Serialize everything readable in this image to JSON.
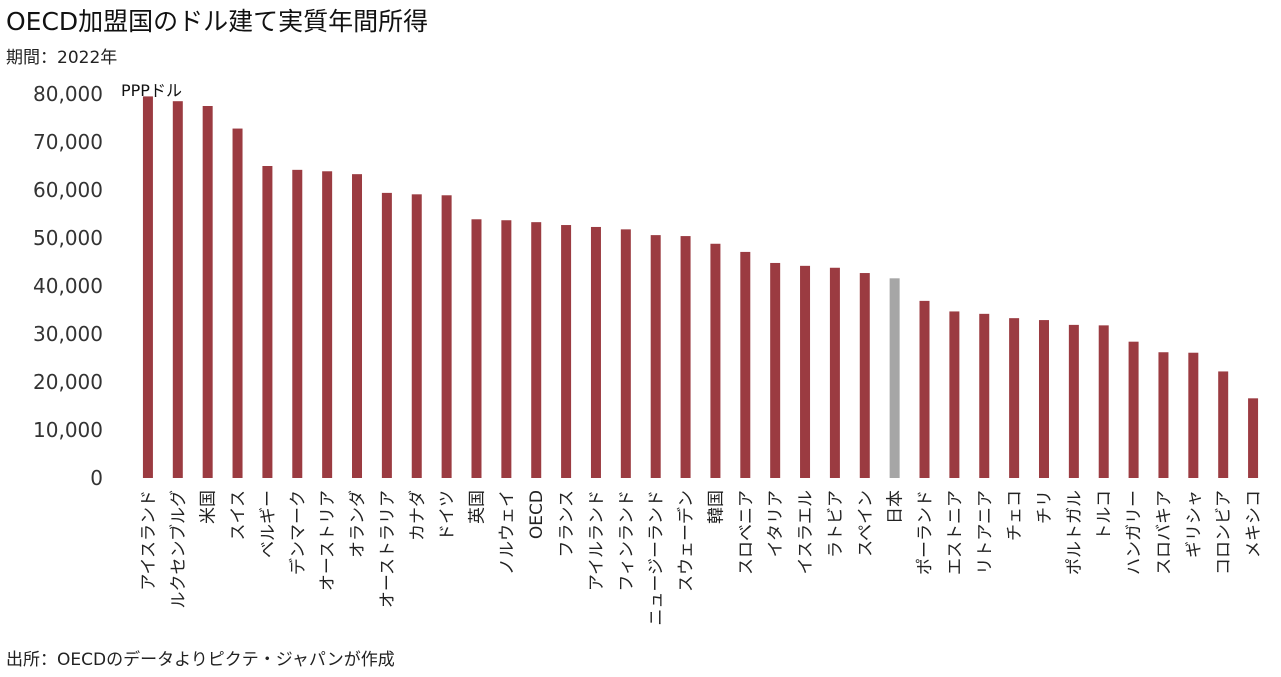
{
  "title": "OECD加盟国のドル建て実質年間所得",
  "subtitle": "期間：2022年",
  "source": "出所：OECDのデータよりピクテ・ジャパンが作成",
  "chart_data": {
    "type": "bar",
    "title": "OECD加盟国のドル建て実質年間所得",
    "subtitle": "期間：2022年",
    "unit_label": "PPPドル",
    "ylim": [
      0,
      80000
    ],
    "yticks": [
      0,
      10000,
      20000,
      30000,
      40000,
      50000,
      60000,
      70000,
      80000
    ],
    "ytick_labels": [
      "0",
      "10,000",
      "20,000",
      "30,000",
      "40,000",
      "50,000",
      "60,000",
      "70,000",
      "80,000"
    ],
    "grid": false,
    "legend": "none",
    "colors": {
      "default": "#9b3b41",
      "highlight": "#a6a6a6"
    },
    "highlight_category": "日本",
    "categories": [
      "アイスランド",
      "ルクセンブルグ",
      "米国",
      "スイス",
      "ベルギー",
      "デンマーク",
      "オーストリア",
      "オランダ",
      "オーストラリア",
      "カナダ",
      "ドイツ",
      "英国",
      "ノルウェイ",
      "OECD",
      "フランス",
      "アイルランド",
      "フィンランド",
      "ニュージーランド",
      "スウェーデン",
      "韓国",
      "スロベニア",
      "イタリア",
      "イスラエル",
      "ラトビア",
      "スペイン",
      "日本",
      "ポーランド",
      "エストニア",
      "リトアニア",
      "チェコ",
      "チリ",
      "ポルトガル",
      "トルコ",
      "ハンガリー",
      "スロバキア",
      "ギリシャ",
      "コロンビア",
      "メキシコ"
    ],
    "values": [
      79500,
      78500,
      77500,
      72800,
      65000,
      64200,
      63900,
      63300,
      59400,
      59100,
      58900,
      53900,
      53700,
      53300,
      52700,
      52300,
      51800,
      50600,
      50400,
      48800,
      47100,
      44800,
      44200,
      43800,
      42700,
      41600,
      36900,
      34700,
      34200,
      33300,
      32900,
      31900,
      31800,
      28400,
      26200,
      26100,
      22200,
      16600
    ]
  }
}
